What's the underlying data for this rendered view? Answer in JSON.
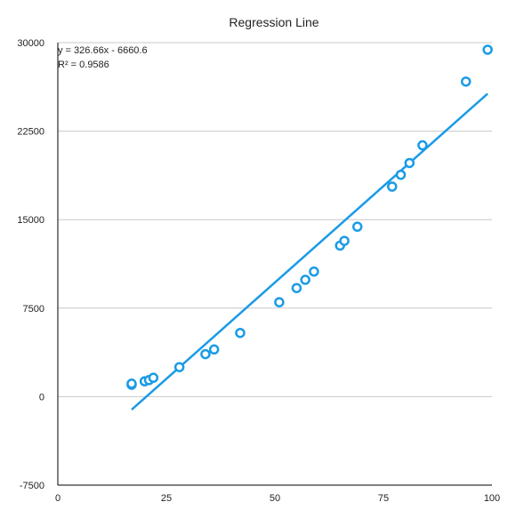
{
  "chart_data": {
    "type": "scatter",
    "title": "Regression Line",
    "xlabel": "",
    "ylabel": "",
    "xlim": [
      0,
      100
    ],
    "ylim": [
      -7500,
      30000
    ],
    "x_ticks": [
      0,
      25,
      50,
      75,
      100
    ],
    "y_ticks": [
      -7500,
      0,
      7500,
      15000,
      22500,
      30000
    ],
    "x_tick_labels": [
      "0",
      "25",
      "50",
      "75",
      "100"
    ],
    "y_tick_labels": [
      "-7500",
      "0",
      "7500",
      "15000",
      "22500",
      "30000"
    ],
    "grid": "horizontal",
    "points": [
      {
        "x": 17,
        "y": 1000
      },
      {
        "x": 17,
        "y": 1100
      },
      {
        "x": 20,
        "y": 1300
      },
      {
        "x": 21,
        "y": 1400
      },
      {
        "x": 22,
        "y": 1600
      },
      {
        "x": 28,
        "y": 2500
      },
      {
        "x": 34,
        "y": 3600
      },
      {
        "x": 36,
        "y": 4000
      },
      {
        "x": 42,
        "y": 5400
      },
      {
        "x": 51,
        "y": 8000
      },
      {
        "x": 55,
        "y": 9200
      },
      {
        "x": 57,
        "y": 9900
      },
      {
        "x": 59,
        "y": 10600
      },
      {
        "x": 65,
        "y": 12800
      },
      {
        "x": 66,
        "y": 13200
      },
      {
        "x": 69,
        "y": 14400
      },
      {
        "x": 77,
        "y": 17800
      },
      {
        "x": 79,
        "y": 18800
      },
      {
        "x": 81,
        "y": 19800
      },
      {
        "x": 84,
        "y": 21300
      },
      {
        "x": 94,
        "y": 26700
      },
      {
        "x": 99,
        "y": 29400
      }
    ],
    "trendline": {
      "slope": 326.66,
      "intercept": -6660.6,
      "x_range": [
        17,
        99
      ],
      "equation": "y = 326.66x - 6660.6",
      "r_squared": "R² = 0.9586"
    },
    "colors": {
      "points": "#1a9be6",
      "trendline": "#1a9be6"
    }
  }
}
